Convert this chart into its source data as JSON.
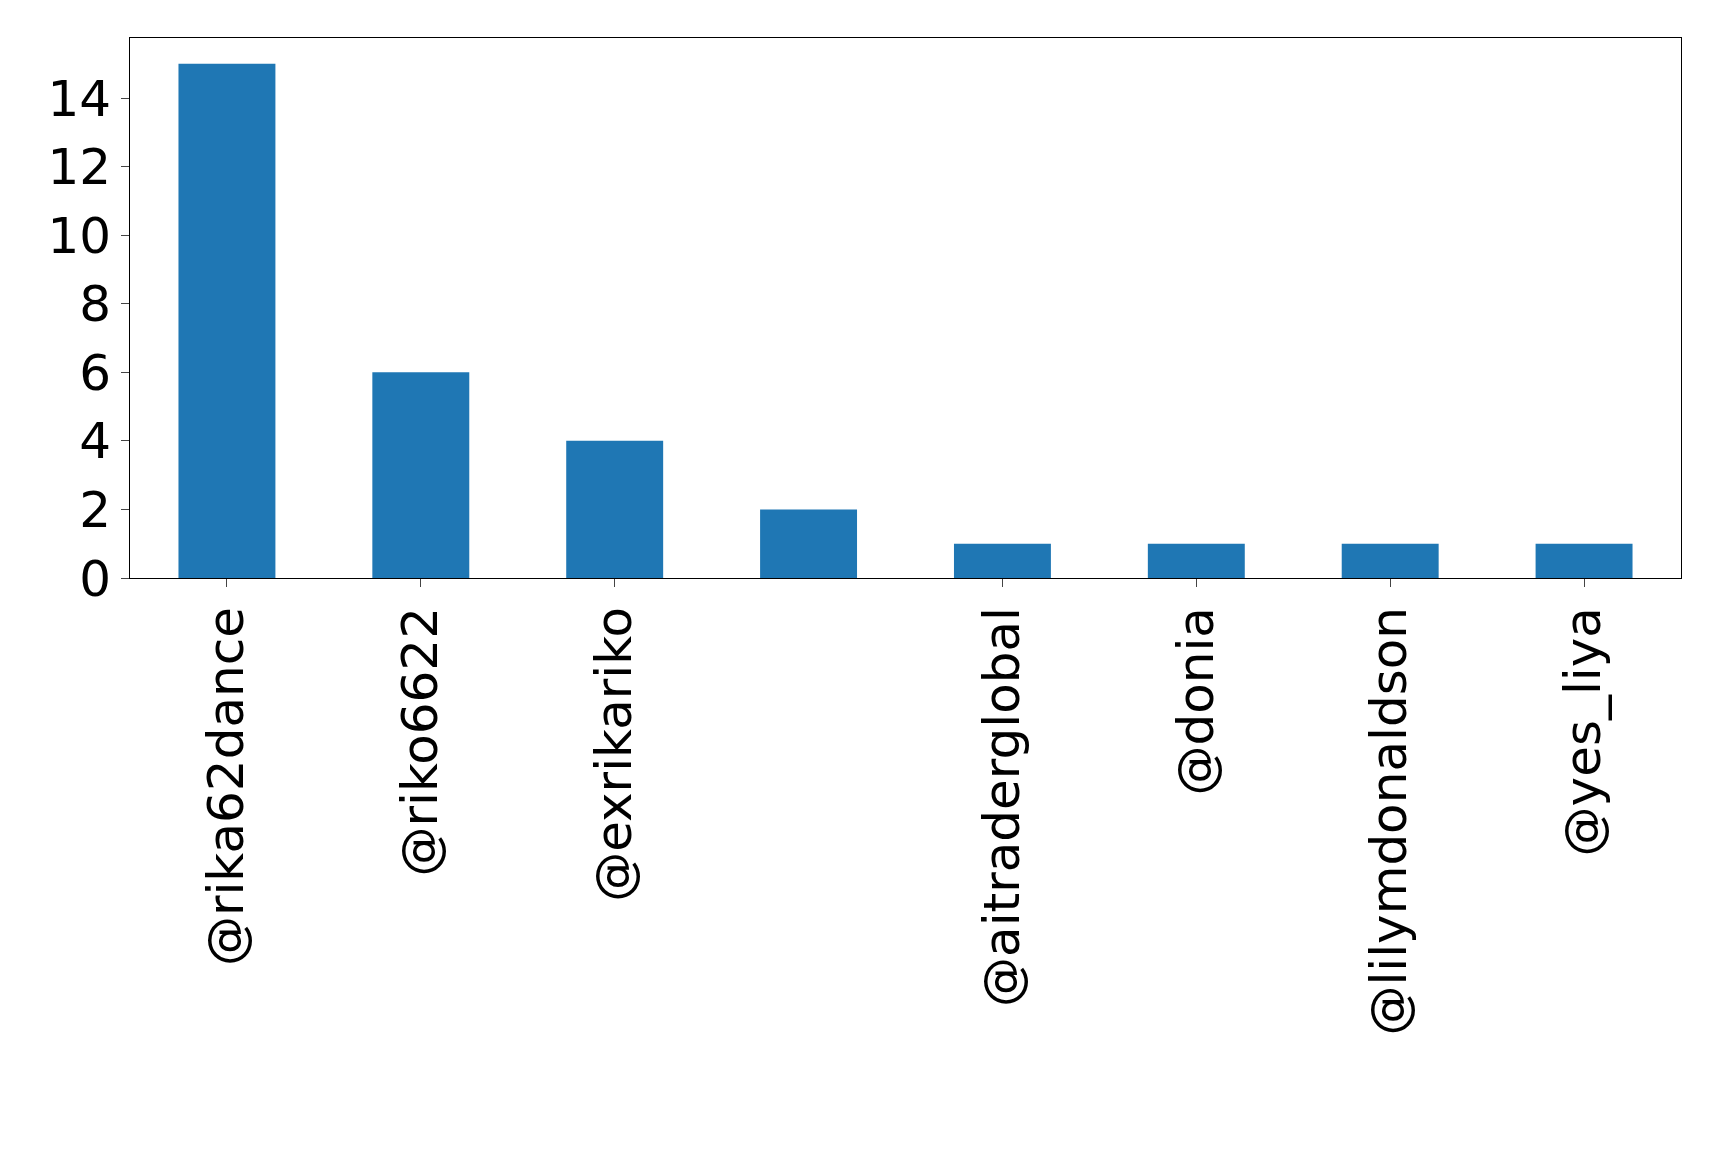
{
  "chart_data": {
    "type": "bar",
    "categories": [
      "@rika62dance",
      "@riko6622",
      "@exrikariko",
      null,
      "@aitraderglobal",
      "@donia",
      "@lilymdonaldson",
      "@yes_liya"
    ],
    "values": [
      15,
      6,
      4,
      2,
      1,
      1,
      1,
      1
    ],
    "color": "#1f77b4",
    "ylim": [
      0,
      15.75
    ],
    "yticks": [
      0,
      2,
      4,
      6,
      8,
      10,
      12,
      14
    ]
  }
}
